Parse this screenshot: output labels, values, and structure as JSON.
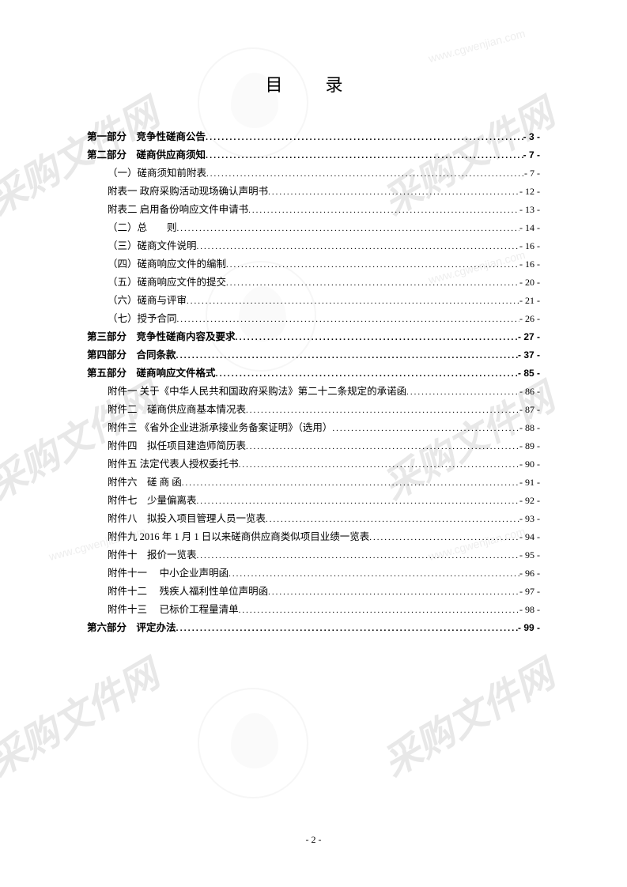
{
  "title": "目 录",
  "page_number": "- 2 -",
  "watermark_text": "采购文件网",
  "watermark_url": "www.cgwenjian.com",
  "colors": {
    "background": "#ffffff",
    "text": "#000000",
    "watermark": "#e8e8e8"
  },
  "typography": {
    "title_fontsize": 22,
    "entry_fontsize": 12.5,
    "line_height": 22,
    "body_font": "SimSun",
    "heading_font": "SimHei"
  },
  "toc": [
    {
      "label": "第一部分　竞争性磋商公告",
      "page": "- 3 -",
      "bold": true,
      "indent": 0
    },
    {
      "label": "第二部分　磋商供应商须知",
      "page": "- 7 -",
      "bold": true,
      "indent": 0
    },
    {
      "label": "（一）磋商须知前附表",
      "page": "- 7 -",
      "bold": false,
      "indent": 1
    },
    {
      "label": "附表一  政府采购活动现场确认声明书",
      "page": "- 12 -",
      "bold": false,
      "indent": 1
    },
    {
      "label": "附表二  启用备份响应文件申请书",
      "page": "- 13 -",
      "bold": false,
      "indent": 1
    },
    {
      "label": "（二）总　　则",
      "page": "- 14 -",
      "bold": false,
      "indent": 1
    },
    {
      "label": "（三）磋商文件说明",
      "page": "- 16 -",
      "bold": false,
      "indent": 1
    },
    {
      "label": "（四）磋商响应文件的编制",
      "page": "- 16 -",
      "bold": false,
      "indent": 1
    },
    {
      "label": "（五）磋商响应文件的提交",
      "page": "- 20 -",
      "bold": false,
      "indent": 1
    },
    {
      "label": "（六）磋商与评审",
      "page": "- 21 -",
      "bold": false,
      "indent": 1
    },
    {
      "label": "（七）授予合同",
      "page": "- 26 -",
      "bold": false,
      "indent": 1
    },
    {
      "label": "第三部分　竞争性磋商内容及要求",
      "page": "- 27 -",
      "bold": true,
      "indent": 0
    },
    {
      "label": "第四部分　合同条款",
      "page": "- 37 -",
      "bold": true,
      "indent": 0
    },
    {
      "label": "第五部分　磋商响应文件格式",
      "page": "- 85 -",
      "bold": true,
      "indent": 0
    },
    {
      "label": "附件一  关于《中华人民共和国政府采购法》第二十二条规定的承诺函",
      "page": "- 86 -",
      "bold": false,
      "indent": 1
    },
    {
      "label": "附件二　磋商供应商基本情况表",
      "page": "- 87 -",
      "bold": false,
      "indent": 1
    },
    {
      "label": "附件三  《省外企业进浙承接业务备案证明》（选用）",
      "page": "- 88 -",
      "bold": false,
      "indent": 1
    },
    {
      "label": "附件四　拟任项目建造师简历表",
      "page": "- 89 -",
      "bold": false,
      "indent": 1
    },
    {
      "label": "附件五  法定代表人授权委托书",
      "page": "- 90 -",
      "bold": false,
      "indent": 1
    },
    {
      "label": "附件六　磋 商 函",
      "page": "- 91 -",
      "bold": false,
      "indent": 1
    },
    {
      "label": "附件七　少量偏离表",
      "page": "- 92 -",
      "bold": false,
      "indent": 1
    },
    {
      "label": "附件八　拟投入项目管理人员一览表",
      "page": "- 93 -",
      "bold": false,
      "indent": 1
    },
    {
      "label": "附件九   2016 年 1 月 1 日以来磋商供应商类似项目业绩一览表",
      "page": "- 94 -",
      "bold": false,
      "indent": 1
    },
    {
      "label": "附件十　报价一览表",
      "page": "- 95 -",
      "bold": false,
      "indent": 1
    },
    {
      "label": "附件十一　  中小企业声明函",
      "page": "- 96 -",
      "bold": false,
      "indent": 1
    },
    {
      "label": "附件十二　  残疾人福利性单位声明函",
      "page": "- 97 -",
      "bold": false,
      "indent": 1
    },
    {
      "label": "附件十三　  已标价工程量清单",
      "page": "- 98 -",
      "bold": false,
      "indent": 1
    },
    {
      "label": "第六部分　评定办法",
      "page": "- 99 -",
      "bold": true,
      "indent": 0
    }
  ]
}
